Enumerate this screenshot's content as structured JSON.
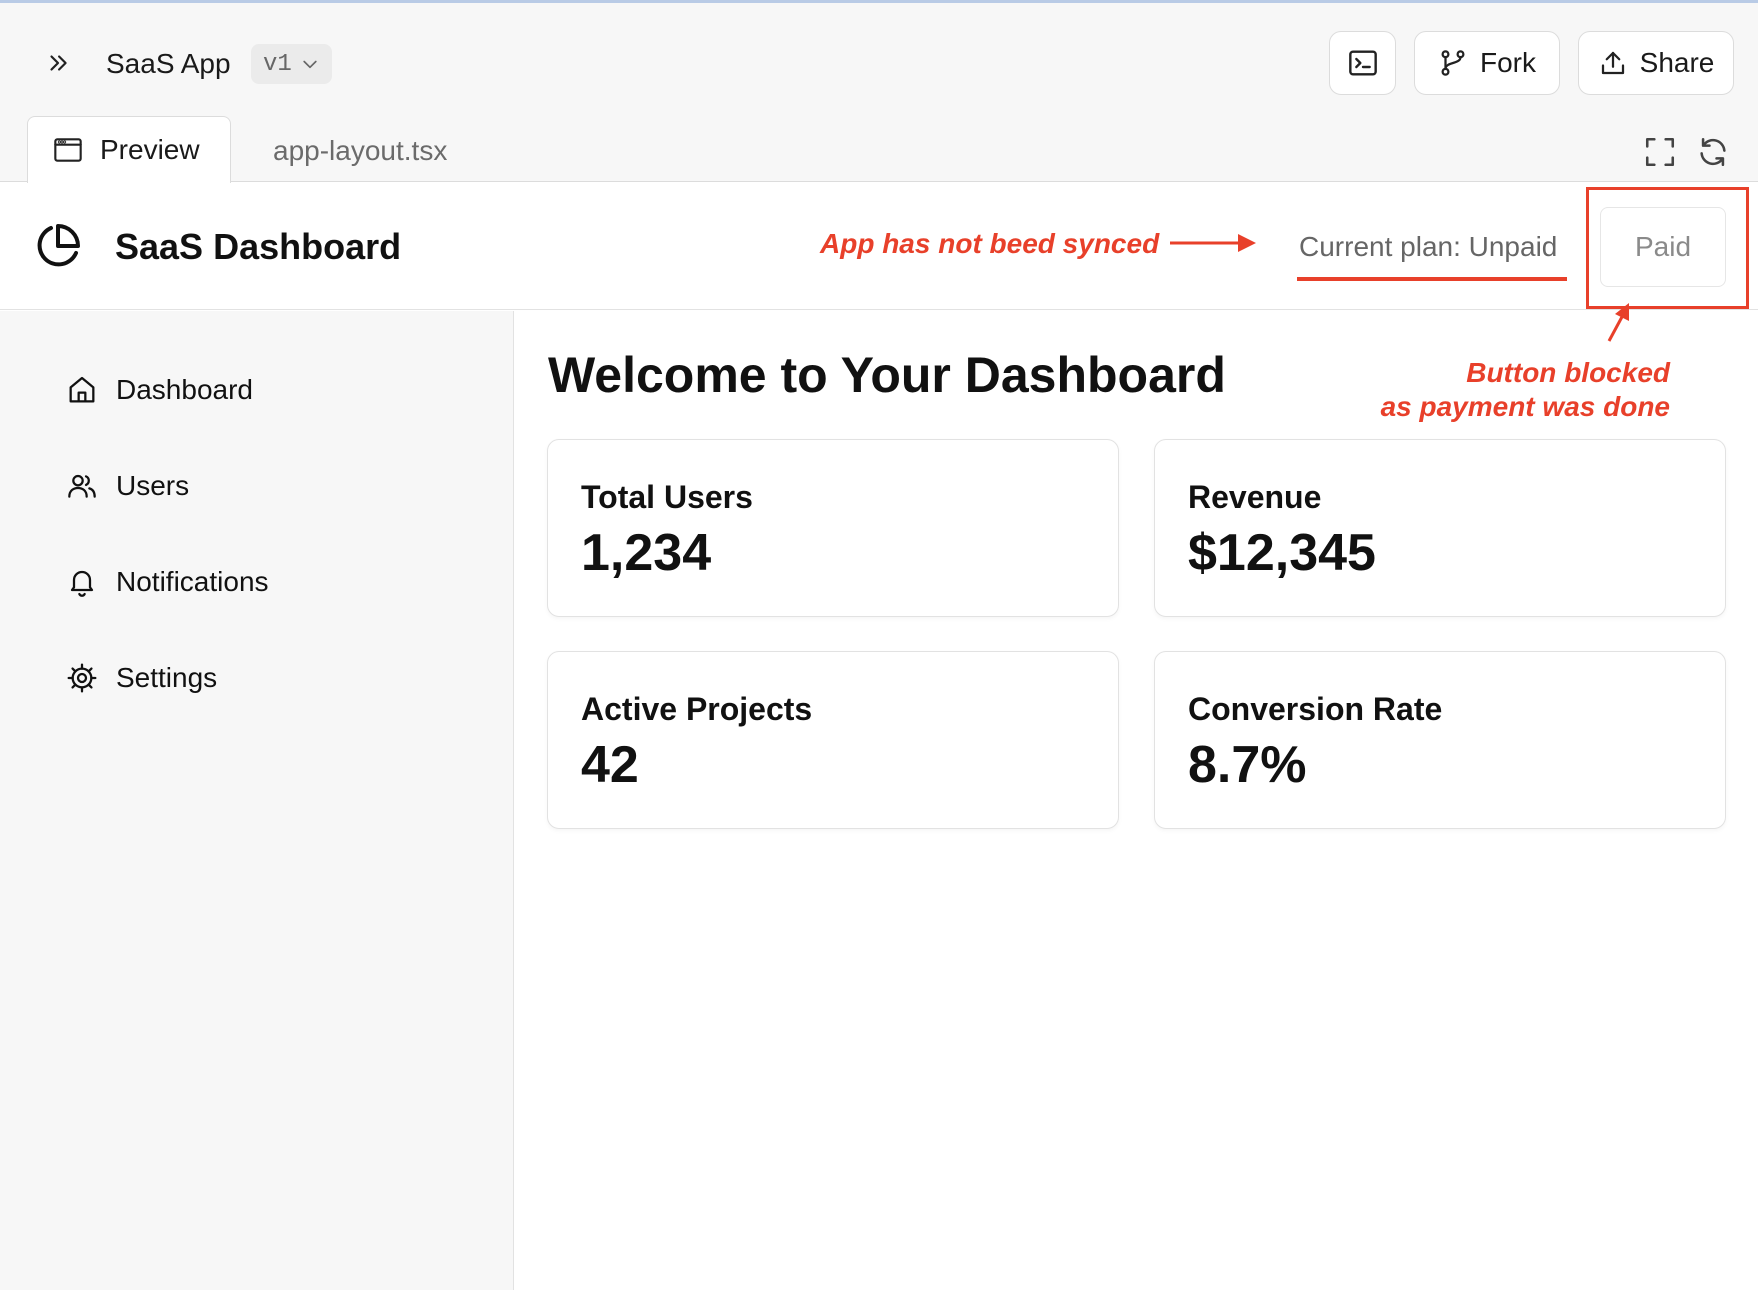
{
  "topbar": {
    "app_name": "SaaS App",
    "version": "v1",
    "fork_label": "Fork",
    "share_label": "Share"
  },
  "tabs": [
    {
      "label": "Preview",
      "active": true
    },
    {
      "label": "app-layout.tsx",
      "active": false
    }
  ],
  "app_header": {
    "title": "SaaS Dashboard",
    "plan_text": "Current plan: Unpaid",
    "paid_button": "Paid"
  },
  "annotations": {
    "sync_note": "App has not beed synced",
    "blocked_note_line1": "Button blocked",
    "blocked_note_line2": "as payment was done",
    "color": "#e8402a"
  },
  "sidebar": {
    "items": [
      {
        "label": "Dashboard",
        "icon": "home-icon"
      },
      {
        "label": "Users",
        "icon": "users-icon"
      },
      {
        "label": "Notifications",
        "icon": "bell-icon"
      },
      {
        "label": "Settings",
        "icon": "gear-icon"
      }
    ]
  },
  "main": {
    "heading": "Welcome to Your Dashboard",
    "cards": [
      {
        "label": "Total Users",
        "value": "1,234"
      },
      {
        "label": "Revenue",
        "value": "$12,345"
      },
      {
        "label": "Active Projects",
        "value": "42"
      },
      {
        "label": "Conversion Rate",
        "value": "8.7%"
      }
    ]
  }
}
